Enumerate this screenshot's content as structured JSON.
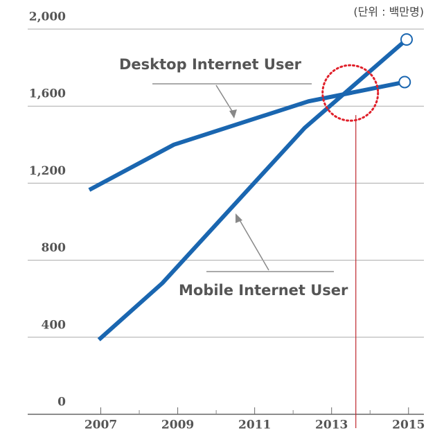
{
  "chart_data": {
    "type": "line",
    "unit_label": "(단위 : 백만명)",
    "xlim": [
      2005.1,
      2015.4
    ],
    "xticks": [
      2007,
      2009,
      2011,
      2013,
      2015
    ],
    "ylim": [
      0,
      2000
    ],
    "yticks": [
      0,
      400,
      800,
      {
        "value": 1200,
        "label": "1,200"
      },
      {
        "value": 1600,
        "label": "1,600"
      },
      {
        "value": 2000,
        "label": "2,000"
      }
    ],
    "grid": true,
    "series": [
      {
        "name": "Desktop Internet User",
        "color": "#1a66b0",
        "x": [
          2006.7,
          2008.9,
          2012.4,
          2014.9
        ],
        "values": [
          1165,
          1400,
          1625,
          1725
        ]
      },
      {
        "name": "Mobile Internet User",
        "color": "#1a66b0",
        "x": [
          2006.95,
          2008.6,
          2012.3,
          2014.95
        ],
        "values": [
          387,
          681,
          1487,
          1946
        ]
      }
    ]
  }
}
